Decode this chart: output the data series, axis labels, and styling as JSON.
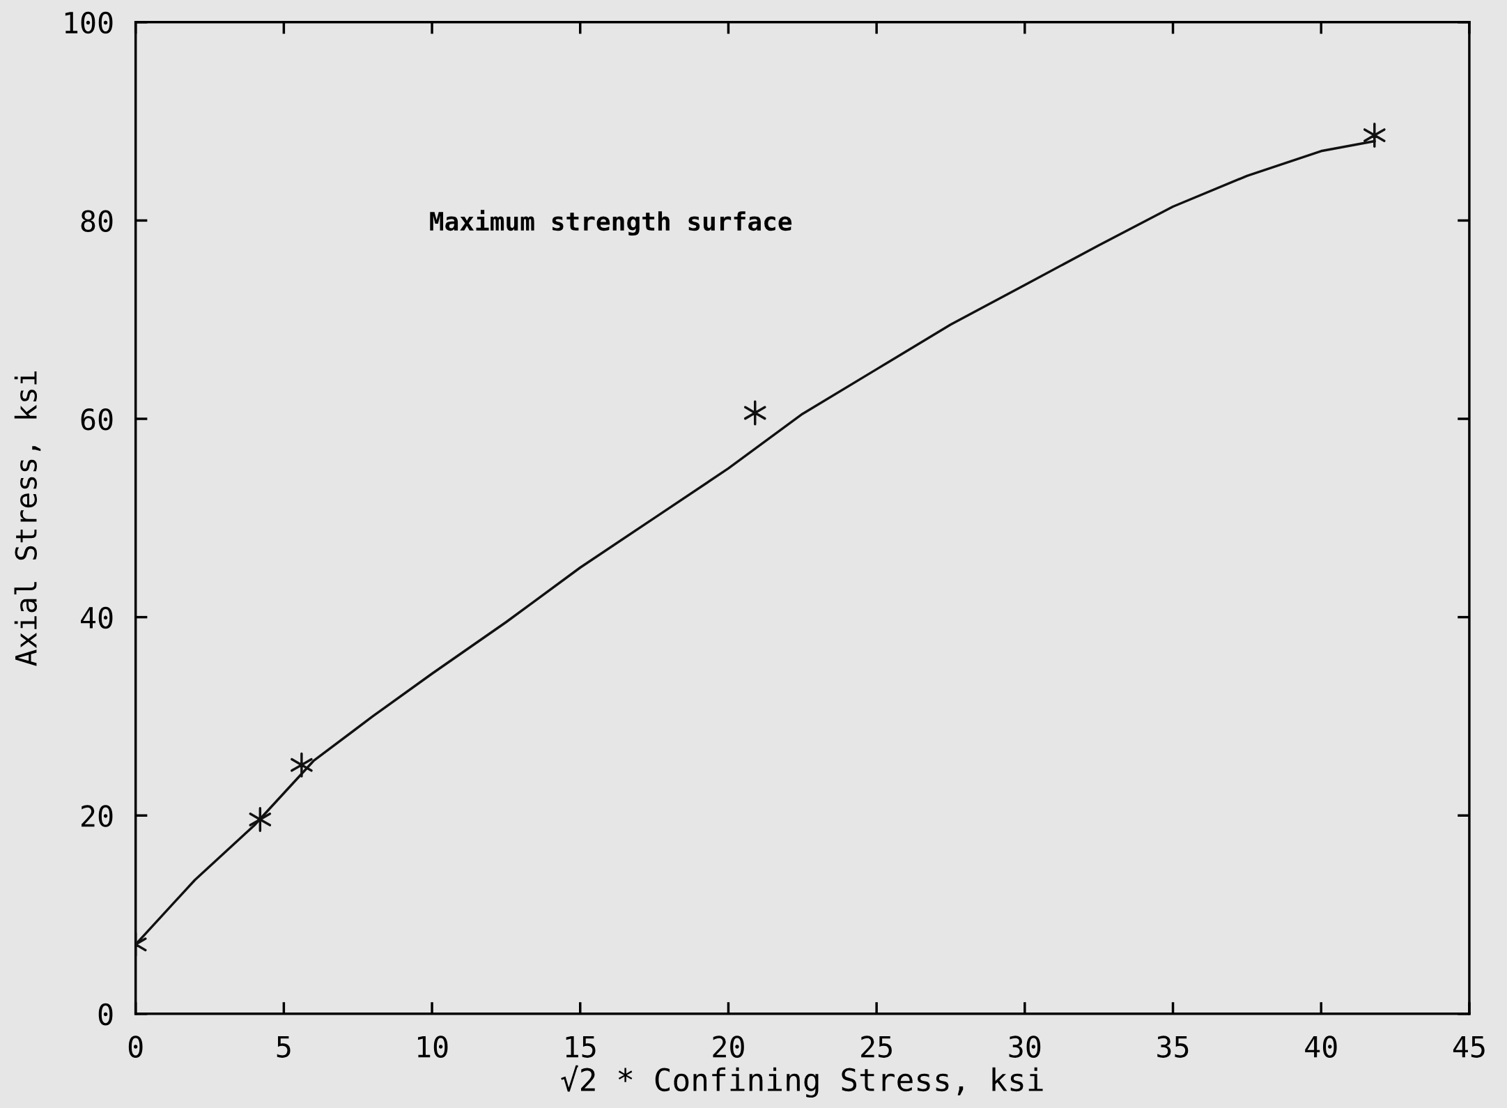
{
  "chart_data": {
    "type": "scatter",
    "xlabel": "√2 * Confining Stress, ksi",
    "ylabel": "Axial Stress, ksi",
    "annotations": [
      "Maximum strength surface"
    ],
    "xlim": [
      0,
      45
    ],
    "ylim": [
      0,
      100
    ],
    "xticks": [
      0,
      5,
      10,
      15,
      20,
      25,
      30,
      35,
      40,
      45
    ],
    "yticks": [
      0,
      20,
      40,
      60,
      80,
      100
    ],
    "grid": false,
    "legend": false,
    "series": [
      {
        "color": "#111111",
        "marker": "cross",
        "x": [
          0,
          4.2,
          5.6,
          20.9,
          41.8
        ],
        "values": [
          7,
          19.6,
          25.1,
          60.6,
          88.6
        ]
      },
      {
        "type": "line",
        "color": "#111111",
        "marker": "none",
        "line_style": "solid",
        "x": [
          0,
          2,
          4,
          6,
          8,
          10,
          12.5,
          15,
          17.5,
          20,
          22.5,
          25,
          27.5,
          30,
          32.5,
          35,
          37.5,
          40,
          41.8
        ],
        "values": [
          7,
          13.5,
          19,
          25.5,
          30,
          34.3,
          39.5,
          45,
          50,
          55,
          60.5,
          65,
          69.5,
          73.5,
          77.5,
          81.4,
          84.5,
          87,
          88
        ]
      }
    ]
  }
}
